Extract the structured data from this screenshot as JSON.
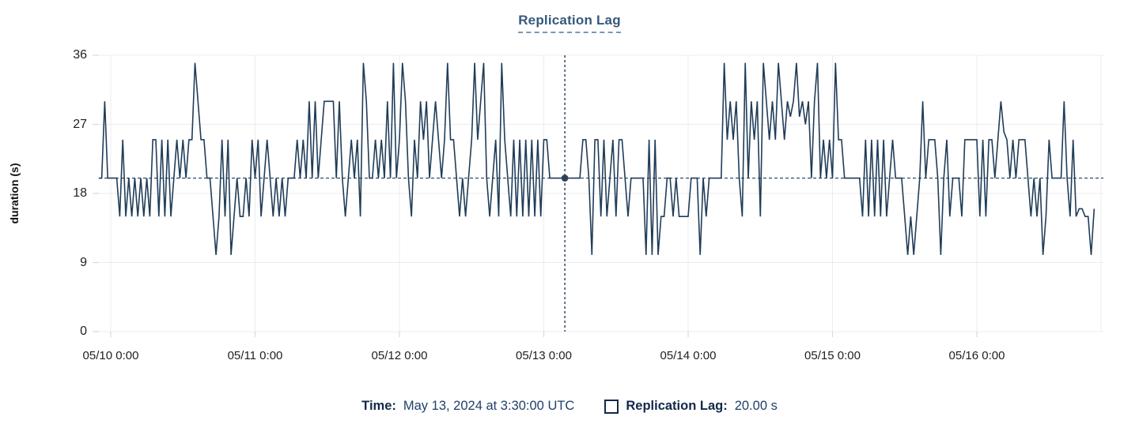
{
  "chart": {
    "title": "Replication Lag",
    "legend": {
      "time_label": "Time:",
      "time_value": "May 13, 2024 at 3:30:00 UTC",
      "series_label": "Replication Lag:",
      "series_value": "20.00 s"
    }
  },
  "chart_data": {
    "type": "line",
    "title": "Replication Lag",
    "xlabel": "",
    "ylabel": "duration (s)",
    "grid": true,
    "legend_position": "bottom",
    "y_axis": {
      "min": 0,
      "max": 36,
      "ticks": [
        0,
        9,
        18,
        27,
        36
      ]
    },
    "x_ticks": [
      "05/10 0:00",
      "05/11 0:00",
      "05/12 0:00",
      "05/13 0:00",
      "05/14 0:00",
      "05/15 0:00",
      "05/16 0:00"
    ],
    "sample_interval": "30m",
    "series_start": "05/09 22:00 UTC",
    "series_name": "Replication Lag",
    "unit": "s",
    "crosshair": {
      "index": 155,
      "time": "May 13, 2024 at 3:30:00 UTC",
      "value": 20,
      "value_label": "20.00 s"
    },
    "colors": {
      "line": "#203d59",
      "crosshair": "#203d59",
      "marker": "#2c4257",
      "grid": "#ececec",
      "tick": "#d9d9d9",
      "axis_text": "#1f1f1f",
      "title": "#37597c",
      "legend_text": "#12294a"
    },
    "values": [
      20,
      20,
      30,
      20,
      20,
      20,
      20,
      15,
      25,
      15,
      20,
      15,
      20,
      15,
      20,
      15,
      20,
      15,
      25,
      25,
      15,
      25,
      15,
      25,
      15,
      20,
      25,
      20,
      25,
      20,
      25,
      25,
      35,
      30,
      25,
      25,
      20,
      20,
      15,
      10,
      15,
      25,
      15,
      25,
      10,
      15,
      20,
      15,
      15,
      20,
      15,
      25,
      20,
      25,
      15,
      20,
      25,
      20,
      15,
      20,
      15,
      20,
      15,
      20,
      20,
      20,
      25,
      20,
      25,
      20,
      30,
      20,
      30,
      20,
      25,
      30,
      30,
      30,
      30,
      20,
      30,
      20,
      15,
      20,
      25,
      20,
      25,
      15,
      35,
      30,
      20,
      20,
      25,
      20,
      25,
      20,
      30,
      20,
      35,
      20,
      25,
      35,
      30,
      20,
      15,
      25,
      20,
      30,
      25,
      30,
      20,
      25,
      30,
      25,
      20,
      25,
      35,
      25,
      25,
      20,
      15,
      20,
      15,
      20,
      25,
      35,
      25,
      30,
      35,
      20,
      15,
      20,
      25,
      15,
      35,
      25,
      20,
      15,
      25,
      15,
      25,
      15,
      25,
      15,
      25,
      15,
      25,
      15,
      25,
      25,
      20,
      20,
      20,
      20,
      20,
      20,
      20,
      20,
      20,
      20,
      20,
      25,
      25,
      20,
      10,
      25,
      25,
      15,
      25,
      15,
      20,
      25,
      15,
      25,
      25,
      20,
      15,
      20,
      20,
      20,
      20,
      20,
      10,
      25,
      10,
      25,
      10,
      15,
      15,
      20,
      20,
      15,
      20,
      15,
      15,
      15,
      15,
      20,
      20,
      20,
      10,
      20,
      15,
      20,
      20,
      20,
      20,
      20,
      35,
      25,
      30,
      25,
      30,
      20,
      15,
      35,
      20,
      30,
      25,
      30,
      15,
      35,
      30,
      25,
      30,
      25,
      35,
      30,
      25,
      30,
      28,
      30,
      35,
      28,
      30,
      27,
      30,
      20,
      30,
      35,
      20,
      25,
      20,
      25,
      20,
      35,
      25,
      25,
      20,
      20,
      20,
      20,
      20,
      20,
      15,
      25,
      15,
      25,
      15,
      25,
      15,
      25,
      15,
      20,
      25,
      20,
      20,
      20,
      15,
      10,
      15,
      10,
      15,
      20,
      30,
      20,
      25,
      25,
      25,
      20,
      10,
      20,
      25,
      15,
      20,
      20,
      20,
      15,
      25,
      25,
      25,
      25,
      25,
      15,
      25,
      15,
      25,
      25,
      20,
      25,
      30,
      26,
      25,
      20,
      25,
      20,
      25,
      25,
      25,
      20,
      15,
      20,
      15,
      20,
      10,
      15,
      25,
      20,
      20,
      20,
      20,
      30,
      20,
      15,
      25,
      15,
      16,
      16,
      15,
      15,
      10,
      16
    ]
  }
}
